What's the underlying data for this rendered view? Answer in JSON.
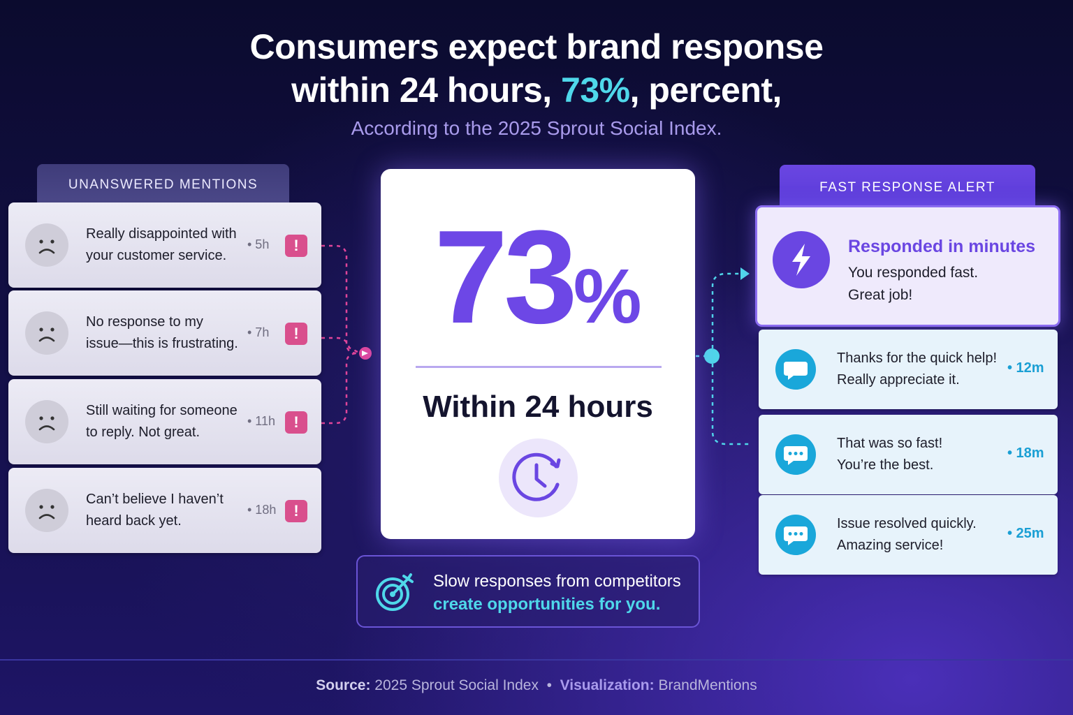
{
  "headline": {
    "line1": "Consumers expect brand response",
    "line2_prefix": "within 24 hours, ",
    "line2_highlight": "73%",
    "line2_suffix": ", percent,",
    "subtitle": "According to the 2025 Sprout Social Index."
  },
  "left_panel": {
    "title": "UNANSWERED MENTIONS",
    "mentions": [
      {
        "text_line1": "Really disappointed with",
        "text_line2": "your customer service.",
        "time": "• 5h",
        "alert": "!",
        "icon": "sad-face-icon"
      },
      {
        "text_line1": "No response to my",
        "text_line2": "issue—this is frustrating.",
        "time": "• 7h",
        "alert": "!",
        "icon": "sad-face-icon"
      },
      {
        "text_line1": "Still waiting for someone",
        "text_line2": "to reply. Not great.",
        "time": "• 11h",
        "alert": "!",
        "icon": "sad-face-icon"
      },
      {
        "text_line1": "Can’t believe I haven’t",
        "text_line2": "heard back yet.",
        "time": "• 18h",
        "alert": "!",
        "icon": "sad-face-icon"
      }
    ]
  },
  "center": {
    "big_number": "73",
    "big_percent": "%",
    "label": "Within 24 hours",
    "icon": "clock-icon",
    "opportunity_line1": "Slow responses from competitors",
    "opportunity_line2": "create opportunities for you.",
    "opportunity_icon": "target-icon"
  },
  "right_panel": {
    "title": "FAST RESPONSE ALERT",
    "alert": {
      "title": "Responded in minutes",
      "line1": "You responded fast.",
      "line2": "Great job!",
      "icon": "lightning-bolt-icon"
    },
    "replies": [
      {
        "text_line1": "Thanks for the quick help!",
        "text_line2": "Really appreciate it.",
        "time": "• 12m",
        "icon": "chat-bubble-icon"
      },
      {
        "text_line1": "That was so fast!",
        "text_line2": "You’re the best.",
        "time": "• 18m",
        "icon": "chat-dots-icon"
      },
      {
        "text_line1": "Issue resolved quickly.",
        "text_line2": "Amazing service!",
        "time": "• 25m",
        "icon": "chat-dots-icon"
      }
    ]
  },
  "footer": {
    "source_label": "Source:",
    "source_value": "2025 Sprout Social Index",
    "separator": "•",
    "viz_label": "Visualization:",
    "viz_value": "BrandMentions"
  },
  "colors": {
    "accent_purple": "#6d47e6",
    "accent_cyan": "#4fd8ea",
    "alert_pink": "#d94f8d",
    "reply_blue": "#1aa7da"
  }
}
